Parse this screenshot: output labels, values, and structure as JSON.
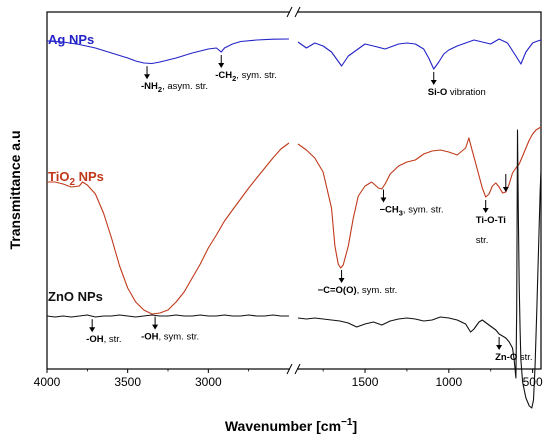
{
  "chart_data": {
    "type": "line",
    "xlabel": "Wavenumber [cm",
    "xlabel_sup": "−1",
    "xlabel_end": "]",
    "ylabel": "Transmittance a.u",
    "x_axis_break": true,
    "x_segments": [
      [
        4000,
        2500
      ],
      [
        1900,
        450
      ]
    ],
    "x_ticks": [
      {
        "value": 4000,
        "label": "4000"
      },
      {
        "value": 3500,
        "label": "3500"
      },
      {
        "value": 3000,
        "label": "3000"
      },
      {
        "value": 1500,
        "label": "1500"
      },
      {
        "value": 1000,
        "label": "1000"
      },
      {
        "value": 500,
        "label": "500"
      }
    ],
    "series": [
      {
        "key": "ag",
        "name": "Ag NPs",
        "color": "#2323c8",
        "left": [
          [
            4000,
            0.9
          ],
          [
            3900,
            2
          ],
          [
            3800,
            4.5
          ],
          [
            3700,
            8
          ],
          [
            3600,
            13
          ],
          [
            3500,
            18
          ],
          [
            3450,
            21
          ],
          [
            3400,
            23
          ],
          [
            3350,
            23.5
          ],
          [
            3300,
            22
          ],
          [
            3200,
            18
          ],
          [
            3100,
            13
          ],
          [
            3000,
            9
          ],
          [
            2950,
            8
          ],
          [
            2920,
            12
          ],
          [
            2900,
            8
          ],
          [
            2850,
            4
          ],
          [
            2800,
            1.5
          ],
          [
            2700,
            0
          ],
          [
            2600,
            -0.8
          ],
          [
            2500,
            -1
          ]
        ],
        "right": [
          [
            1900,
            2
          ],
          [
            1850,
            8
          ],
          [
            1800,
            3
          ],
          [
            1750,
            6
          ],
          [
            1700,
            12
          ],
          [
            1640,
            26
          ],
          [
            1600,
            16
          ],
          [
            1550,
            10
          ],
          [
            1500,
            4
          ],
          [
            1450,
            6
          ],
          [
            1380,
            9
          ],
          [
            1300,
            4
          ],
          [
            1250,
            3
          ],
          [
            1200,
            4
          ],
          [
            1150,
            9
          ],
          [
            1120,
            18
          ],
          [
            1090,
            29
          ],
          [
            1060,
            22
          ],
          [
            1030,
            14
          ],
          [
            1000,
            10
          ],
          [
            950,
            6
          ],
          [
            900,
            3
          ],
          [
            850,
            0
          ],
          [
            800,
            2
          ],
          [
            750,
            4
          ],
          [
            700,
            -1
          ],
          [
            650,
            3
          ],
          [
            600,
            16
          ],
          [
            570,
            24
          ],
          [
            540,
            12
          ],
          [
            500,
            3
          ],
          [
            470,
            1
          ],
          [
            450,
            0
          ]
        ]
      },
      {
        "key": "tio2",
        "name": "TiO",
        "name_sub": "2",
        "name_end": " NPs",
        "color": "#c0391b",
        "left": [
          [
            4000,
            84
          ],
          [
            3950,
            84
          ],
          [
            3900,
            86
          ],
          [
            3850,
            89
          ],
          [
            3800,
            88
          ],
          [
            3780,
            84
          ],
          [
            3750,
            87
          ],
          [
            3700,
            96
          ],
          [
            3650,
            115
          ],
          [
            3600,
            140
          ],
          [
            3550,
            168
          ],
          [
            3500,
            190
          ],
          [
            3450,
            204
          ],
          [
            3400,
            212
          ],
          [
            3350,
            216
          ],
          [
            3300,
            215
          ],
          [
            3250,
            212
          ],
          [
            3200,
            204
          ],
          [
            3150,
            194
          ],
          [
            3100,
            180
          ],
          [
            3050,
            166
          ],
          [
            3000,
            150
          ],
          [
            2950,
            137
          ],
          [
            2900,
            123
          ],
          [
            2850,
            112
          ],
          [
            2800,
            101
          ],
          [
            2750,
            90
          ],
          [
            2700,
            80
          ],
          [
            2650,
            70
          ],
          [
            2600,
            60
          ],
          [
            2550,
            51
          ],
          [
            2500,
            45
          ]
        ],
        "right": [
          [
            1900,
            46
          ],
          [
            1850,
            52
          ],
          [
            1800,
            60
          ],
          [
            1750,
            74
          ],
          [
            1700,
            110
          ],
          [
            1680,
            148
          ],
          [
            1660,
            166
          ],
          [
            1645,
            170
          ],
          [
            1630,
            167
          ],
          [
            1600,
            148
          ],
          [
            1570,
            120
          ],
          [
            1540,
            98
          ],
          [
            1500,
            88
          ],
          [
            1460,
            84
          ],
          [
            1420,
            90
          ],
          [
            1400,
            91
          ],
          [
            1380,
            86
          ],
          [
            1350,
            76
          ],
          [
            1300,
            68
          ],
          [
            1250,
            64
          ],
          [
            1200,
            62
          ],
          [
            1150,
            56
          ],
          [
            1100,
            53
          ],
          [
            1050,
            52
          ],
          [
            1000,
            54
          ],
          [
            950,
            57
          ],
          [
            900,
            50
          ],
          [
            880,
            40
          ],
          [
            860,
            53
          ],
          [
            840,
            65
          ],
          [
            800,
            90
          ],
          [
            780,
            99
          ],
          [
            760,
            96
          ],
          [
            740,
            88
          ],
          [
            720,
            85
          ],
          [
            700,
            89
          ],
          [
            680,
            95
          ],
          [
            660,
            94
          ],
          [
            640,
            86
          ],
          [
            620,
            75
          ],
          [
            600,
            70
          ],
          [
            580,
            66
          ],
          [
            560,
            58
          ],
          [
            540,
            50
          ],
          [
            520,
            42
          ],
          [
            500,
            36
          ],
          [
            480,
            32
          ],
          [
            460,
            30
          ],
          [
            450,
            29
          ]
        ]
      },
      {
        "key": "zno",
        "name": "ZnO NPs",
        "color": "#111111",
        "left": [
          [
            4000,
            256
          ],
          [
            3950,
            257
          ],
          [
            3900,
            256
          ],
          [
            3850,
            257
          ],
          [
            3800,
            256
          ],
          [
            3750,
            255
          ],
          [
            3700,
            257
          ],
          [
            3650,
            256
          ],
          [
            3600,
            256
          ],
          [
            3550,
            255
          ],
          [
            3500,
            256
          ],
          [
            3450,
            257
          ],
          [
            3400,
            256
          ],
          [
            3350,
            255
          ],
          [
            3300,
            256
          ],
          [
            3250,
            256
          ],
          [
            3200,
            255
          ],
          [
            3150,
            256
          ],
          [
            3100,
            256
          ],
          [
            3050,
            255
          ],
          [
            3000,
            256
          ],
          [
            2950,
            256
          ],
          [
            2900,
            255
          ],
          [
            2850,
            256
          ],
          [
            2800,
            256
          ],
          [
            2750,
            255
          ],
          [
            2700,
            256
          ],
          [
            2650,
            256
          ],
          [
            2600,
            255
          ],
          [
            2550,
            256
          ],
          [
            2500,
            256
          ]
        ],
        "right": [
          [
            1900,
            258
          ],
          [
            1850,
            259
          ],
          [
            1800,
            258
          ],
          [
            1750,
            259
          ],
          [
            1700,
            260
          ],
          [
            1650,
            261
          ],
          [
            1600,
            263
          ],
          [
            1550,
            267
          ],
          [
            1500,
            264
          ],
          [
            1450,
            262
          ],
          [
            1400,
            265
          ],
          [
            1350,
            261
          ],
          [
            1300,
            259
          ],
          [
            1250,
            258
          ],
          [
            1200,
            259
          ],
          [
            1150,
            261
          ],
          [
            1100,
            260
          ],
          [
            1050,
            257
          ],
          [
            1000,
            258
          ],
          [
            950,
            260
          ],
          [
            900,
            264
          ],
          [
            870,
            272
          ],
          [
            850,
            269
          ],
          [
            820,
            262
          ],
          [
            800,
            260
          ],
          [
            760,
            265
          ],
          [
            720,
            270
          ],
          [
            700,
            274
          ],
          [
            680,
            276
          ],
          [
            660,
            278
          ],
          [
            640,
            282
          ],
          [
            620,
            288
          ],
          [
            610,
            300
          ],
          [
            600,
            318
          ],
          [
            595,
            250
          ],
          [
            590,
            70
          ],
          [
            585,
            160
          ],
          [
            580,
            225
          ],
          [
            575,
            270
          ],
          [
            570,
            300
          ],
          [
            560,
            322
          ],
          [
            540,
            338
          ],
          [
            520,
            346
          ],
          [
            505,
            348
          ],
          [
            495,
            340
          ],
          [
            485,
            305
          ],
          [
            475,
            250
          ],
          [
            465,
            190
          ],
          [
            455,
            130
          ],
          [
            450,
            110
          ]
        ]
      }
    ],
    "annotations": [
      {
        "key": "ag_nh2",
        "x": 3380,
        "series": "ag",
        "text_parts": [
          "-NH",
          "2",
          ", asym. str."
        ],
        "text_style": [
          "b",
          "bsub",
          "n"
        ],
        "label_dx": -6
      },
      {
        "key": "ag_ch2",
        "x": 2920,
        "series": "ag",
        "text_parts": [
          "-CH",
          "2",
          ", sym. str."
        ],
        "text_style": [
          "b",
          "bsub",
          "n"
        ],
        "label_dx": -6
      },
      {
        "key": "ag_sio",
        "x": 1090,
        "series": "ag",
        "text_parts": [
          "Si-O",
          " vibration"
        ],
        "text_style": [
          "b",
          "n"
        ],
        "label_dx": -6
      },
      {
        "key": "tio2_oh",
        "x": 3330,
        "series": "tio2",
        "text_parts": [
          "-OH",
          ", sym. str."
        ],
        "text_style": [
          "b",
          "n"
        ],
        "label_dx": -14
      },
      {
        "key": "tio2_co",
        "x": 1640,
        "series": "tio2",
        "text_parts": [
          "−C=O(O)",
          ", sym. str."
        ],
        "text_style": [
          "b",
          "n"
        ],
        "label_dx": -24
      },
      {
        "key": "tio2_ch3",
        "x": 1390,
        "series": "tio2",
        "text_parts": [
          "−CH",
          "3",
          ", sym. str."
        ],
        "text_style": [
          "b",
          "bsub",
          "n"
        ],
        "label_dx": -4
      },
      {
        "key": "tio2_tioti",
        "x": 780,
        "series": "tio2",
        "text_parts": [
          "Ti-O-Ti"
        ],
        "text_style": [
          "b"
        ],
        "label_dx": -10,
        "extra_line": "str.",
        "second_arrow_x": 660
      },
      {
        "key": "zno_oh",
        "x": 3720,
        "series": "zno",
        "text_parts": [
          "-OH",
          ", str."
        ],
        "text_style": [
          "b",
          "n"
        ],
        "label_dx": -6
      },
      {
        "key": "zno_zno",
        "x": 700,
        "series": "zno",
        "text_parts": [
          "Zn-O",
          " str."
        ],
        "text_style": [
          "b",
          "n"
        ],
        "label_dx": -4
      }
    ]
  }
}
